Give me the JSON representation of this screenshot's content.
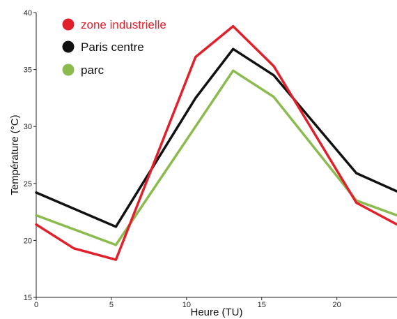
{
  "chart_data": {
    "type": "line",
    "title": "",
    "xlabel": "Heure (TU)",
    "ylabel": "Température (°C)",
    "xlim": [
      0,
      24
    ],
    "ylim": [
      15,
      40
    ],
    "xticks": [
      0,
      5,
      10,
      15,
      20
    ],
    "yticks": [
      15,
      20,
      25,
      30,
      35,
      40
    ],
    "x_tick_labels": [
      "0",
      "5",
      "10",
      "15",
      "20"
    ],
    "y_tick_labels": [
      "15",
      "20",
      "25",
      "30",
      "35",
      "40"
    ],
    "grid": false,
    "legend_position": "top-left",
    "series": [
      {
        "name": "zone industrielle",
        "color": "#e0202a",
        "x": [
          0,
          2.5,
          5.3,
          10.6,
          13.1,
          15.8,
          21.3,
          24
        ],
        "y": [
          21.4,
          19.3,
          18.3,
          36.1,
          38.8,
          35.3,
          23.3,
          21.4
        ]
      },
      {
        "name": "Paris centre",
        "color": "#111111",
        "x": [
          0,
          5.3,
          10.6,
          13.1,
          15.8,
          21.3,
          24
        ],
        "y": [
          24.2,
          21.2,
          32.5,
          36.8,
          34.5,
          25.9,
          24.3
        ]
      },
      {
        "name": "parc",
        "color": "#8bbb4e",
        "x": [
          0,
          5.3,
          10.6,
          13.1,
          15.8,
          21.3,
          24
        ],
        "y": [
          22.2,
          19.6,
          30.0,
          34.9,
          32.6,
          23.5,
          22.2
        ]
      }
    ]
  }
}
